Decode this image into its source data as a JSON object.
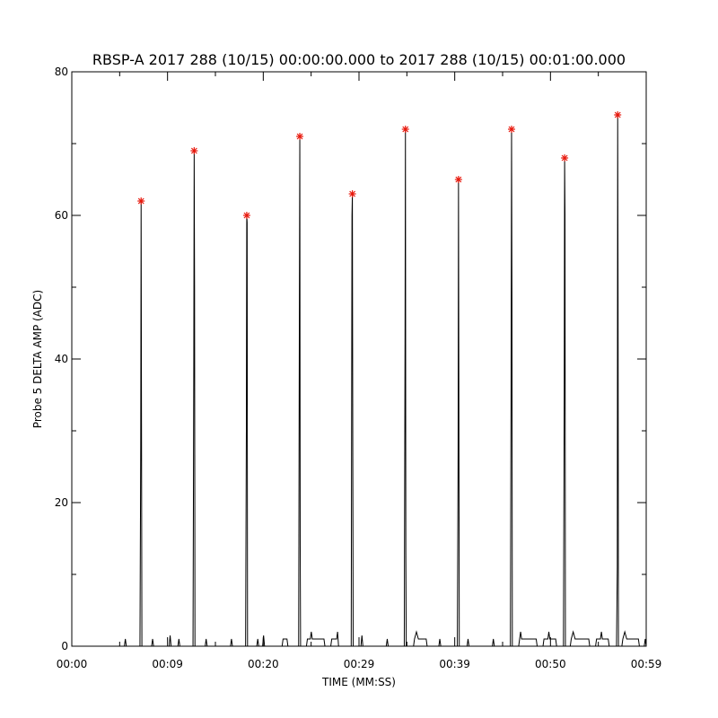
{
  "chart_data": {
    "type": "line",
    "title": "RBSP-A 2017 288 (10/15) 00:00:00.000 to 2017 288 (10/15) 00:01:00.000",
    "xlabel": "TIME (MM:SS)",
    "ylabel": "Probe 5 DELTA AMP (ADC)",
    "xlim": [
      "00:00",
      "00:59"
    ],
    "ylim": [
      0,
      80
    ],
    "x_ticks": [
      "00:00",
      "00:09",
      "00:20",
      "00:29",
      "00:39",
      "00:50",
      "00:59"
    ],
    "y_ticks": [
      "0",
      "20",
      "40",
      "60",
      "80"
    ],
    "grid": false,
    "series": [
      {
        "line_color": "#000000",
        "points": [
          {
            "t": "00:05.4",
            "y": 0
          },
          {
            "t": "00:05.5",
            "y": 1
          },
          {
            "t": "00:05.6",
            "y": 0
          },
          {
            "t": "00:07.00",
            "y": 0
          },
          {
            "t": "00:07.08",
            "y": 28
          },
          {
            "t": "00:07.12",
            "y": 62
          },
          {
            "t": "00:07.16",
            "y": 31
          },
          {
            "t": "00:07.20",
            "y": 0
          },
          {
            "t": "00:08.2",
            "y": 0
          },
          {
            "t": "00:08.3",
            "y": 1
          },
          {
            "t": "00:08.4",
            "y": 0
          },
          {
            "t": "00:10.0",
            "y": 0
          },
          {
            "t": "00:10.1",
            "y": 1.5
          },
          {
            "t": "00:10.2",
            "y": 0
          },
          {
            "t": "00:10.9",
            "y": 0
          },
          {
            "t": "00:11.0",
            "y": 1
          },
          {
            "t": "00:11.1",
            "y": 0
          },
          {
            "t": "00:12.45",
            "y": 0
          },
          {
            "t": "00:12.53",
            "y": 39
          },
          {
            "t": "00:12.57",
            "y": 69
          },
          {
            "t": "00:12.61",
            "y": 50
          },
          {
            "t": "00:12.65",
            "y": 0
          },
          {
            "t": "00:13.7",
            "y": 0
          },
          {
            "t": "00:13.8",
            "y": 1
          },
          {
            "t": "00:13.9",
            "y": 0
          },
          {
            "t": "00:16.3",
            "y": 0
          },
          {
            "t": "00:16.4",
            "y": 1
          },
          {
            "t": "00:16.5",
            "y": 0
          },
          {
            "t": "00:17.85",
            "y": 0
          },
          {
            "t": "00:17.93",
            "y": 30
          },
          {
            "t": "00:17.97",
            "y": 60
          },
          {
            "t": "00:18.01",
            "y": 59
          },
          {
            "t": "00:18.05",
            "y": 0
          },
          {
            "t": "00:19.0",
            "y": 0
          },
          {
            "t": "00:19.1",
            "y": 1
          },
          {
            "t": "00:19.2",
            "y": 0
          },
          {
            "t": "00:19.6",
            "y": 0
          },
          {
            "t": "00:19.7",
            "y": 1.5
          },
          {
            "t": "00:19.8",
            "y": 0
          },
          {
            "t": "00:21.6",
            "y": 0
          },
          {
            "t": "00:21.7",
            "y": 1
          },
          {
            "t": "00:22.1",
            "y": 1
          },
          {
            "t": "00:22.2",
            "y": 0
          },
          {
            "t": "00:23.30",
            "y": 0
          },
          {
            "t": "00:23.38",
            "y": 50
          },
          {
            "t": "00:23.42",
            "y": 71
          },
          {
            "t": "00:23.46",
            "y": 14
          },
          {
            "t": "00:23.50",
            "y": 0
          },
          {
            "t": "00:24.1",
            "y": 0
          },
          {
            "t": "00:24.2",
            "y": 1
          },
          {
            "t": "00:24.5",
            "y": 1
          },
          {
            "t": "00:24.6",
            "y": 2
          },
          {
            "t": "00:24.7",
            "y": 1
          },
          {
            "t": "00:25.9",
            "y": 1
          },
          {
            "t": "00:26.0",
            "y": 0
          },
          {
            "t": "00:26.6",
            "y": 0
          },
          {
            "t": "00:26.7",
            "y": 1
          },
          {
            "t": "00:27.2",
            "y": 1
          },
          {
            "t": "00:27.3",
            "y": 2
          },
          {
            "t": "00:27.4",
            "y": 0
          },
          {
            "t": "00:28.70",
            "y": 0
          },
          {
            "t": "00:28.78",
            "y": 60
          },
          {
            "t": "00:28.82",
            "y": 63
          },
          {
            "t": "00:28.86",
            "y": 28
          },
          {
            "t": "00:28.90",
            "y": 0
          },
          {
            "t": "00:29.7",
            "y": 0
          },
          {
            "t": "00:29.8",
            "y": 1.5
          },
          {
            "t": "00:29.9",
            "y": 0
          },
          {
            "t": "00:32.3",
            "y": 0
          },
          {
            "t": "00:32.4",
            "y": 1
          },
          {
            "t": "00:32.5",
            "y": 0
          },
          {
            "t": "00:34.15",
            "y": 0
          },
          {
            "t": "00:34.23",
            "y": 43
          },
          {
            "t": "00:34.27",
            "y": 72
          },
          {
            "t": "00:34.31",
            "y": 13
          },
          {
            "t": "00:34.35",
            "y": 0
          },
          {
            "t": "00:35.1",
            "y": 0
          },
          {
            "t": "00:35.2",
            "y": 1
          },
          {
            "t": "00:35.4",
            "y": 2
          },
          {
            "t": "00:35.6",
            "y": 1
          },
          {
            "t": "00:36.4",
            "y": 1
          },
          {
            "t": "00:36.5",
            "y": 0
          },
          {
            "t": "00:37.7",
            "y": 0
          },
          {
            "t": "00:37.8",
            "y": 1
          },
          {
            "t": "00:37.9",
            "y": 0
          },
          {
            "t": "00:39.60",
            "y": 0
          },
          {
            "t": "00:39.68",
            "y": 27
          },
          {
            "t": "00:39.72",
            "y": 65
          },
          {
            "t": "00:39.76",
            "y": 33
          },
          {
            "t": "00:39.80",
            "y": 0
          },
          {
            "t": "00:40.6",
            "y": 0
          },
          {
            "t": "00:40.7",
            "y": 1
          },
          {
            "t": "00:40.8",
            "y": 0
          },
          {
            "t": "00:43.2",
            "y": 0
          },
          {
            "t": "00:43.3",
            "y": 1
          },
          {
            "t": "00:43.4",
            "y": 0
          },
          {
            "t": "00:45.05",
            "y": 0
          },
          {
            "t": "00:45.13",
            "y": 43
          },
          {
            "t": "00:45.17",
            "y": 72
          },
          {
            "t": "00:45.21",
            "y": 48
          },
          {
            "t": "00:45.25",
            "y": 0
          },
          {
            "t": "00:45.9",
            "y": 0
          },
          {
            "t": "00:46.0",
            "y": 1
          },
          {
            "t": "00:46.1",
            "y": 2
          },
          {
            "t": "00:46.2",
            "y": 1
          },
          {
            "t": "00:47.7",
            "y": 1
          },
          {
            "t": "00:47.8",
            "y": 0
          },
          {
            "t": "00:48.4",
            "y": 0
          },
          {
            "t": "00:48.5",
            "y": 1
          },
          {
            "t": "00:48.9",
            "y": 1
          },
          {
            "t": "00:49.0",
            "y": 2
          },
          {
            "t": "00:49.1",
            "y": 1
          },
          {
            "t": "00:49.7",
            "y": 1
          },
          {
            "t": "00:49.8",
            "y": 0
          },
          {
            "t": "00:50.50",
            "y": 0
          },
          {
            "t": "00:50.58",
            "y": 35
          },
          {
            "t": "00:50.62",
            "y": 68
          },
          {
            "t": "00:50.66",
            "y": 60
          },
          {
            "t": "00:50.70",
            "y": 0
          },
          {
            "t": "00:51.2",
            "y": 0
          },
          {
            "t": "00:51.3",
            "y": 1
          },
          {
            "t": "00:51.5",
            "y": 2
          },
          {
            "t": "00:51.7",
            "y": 1
          },
          {
            "t": "00:53.1",
            "y": 1
          },
          {
            "t": "00:53.2",
            "y": 0
          },
          {
            "t": "00:53.8",
            "y": 0
          },
          {
            "t": "00:53.9",
            "y": 1
          },
          {
            "t": "00:54.3",
            "y": 1
          },
          {
            "t": "00:54.4",
            "y": 2
          },
          {
            "t": "00:54.5",
            "y": 1
          },
          {
            "t": "00:55.1",
            "y": 1
          },
          {
            "t": "00:55.2",
            "y": 0
          },
          {
            "t": "00:55.95",
            "y": 0
          },
          {
            "t": "00:56.03",
            "y": 11
          },
          {
            "t": "00:56.07",
            "y": 74
          },
          {
            "t": "00:56.11",
            "y": 48
          },
          {
            "t": "00:56.15",
            "y": 0
          },
          {
            "t": "00:56.5",
            "y": 0
          },
          {
            "t": "00:56.6",
            "y": 1
          },
          {
            "t": "00:56.8",
            "y": 2
          },
          {
            "t": "00:57.0",
            "y": 1
          },
          {
            "t": "00:58.2",
            "y": 1
          },
          {
            "t": "00:58.3",
            "y": 0
          },
          {
            "t": "00:58.8",
            "y": 0
          },
          {
            "t": "00:58.9",
            "y": 1
          },
          {
            "t": "00:59.0",
            "y": 0
          }
        ]
      }
    ],
    "peaks": {
      "marker_color": "#e8180c",
      "points": [
        {
          "t": "00:07.12",
          "y": 62
        },
        {
          "t": "00:12.57",
          "y": 69
        },
        {
          "t": "00:17.97",
          "y": 60
        },
        {
          "t": "00:23.42",
          "y": 71
        },
        {
          "t": "00:28.82",
          "y": 63
        },
        {
          "t": "00:34.27",
          "y": 72
        },
        {
          "t": "00:39.72",
          "y": 65
        },
        {
          "t": "00:45.17",
          "y": 72
        },
        {
          "t": "00:50.62",
          "y": 68
        },
        {
          "t": "00:56.07",
          "y": 74
        }
      ]
    }
  }
}
